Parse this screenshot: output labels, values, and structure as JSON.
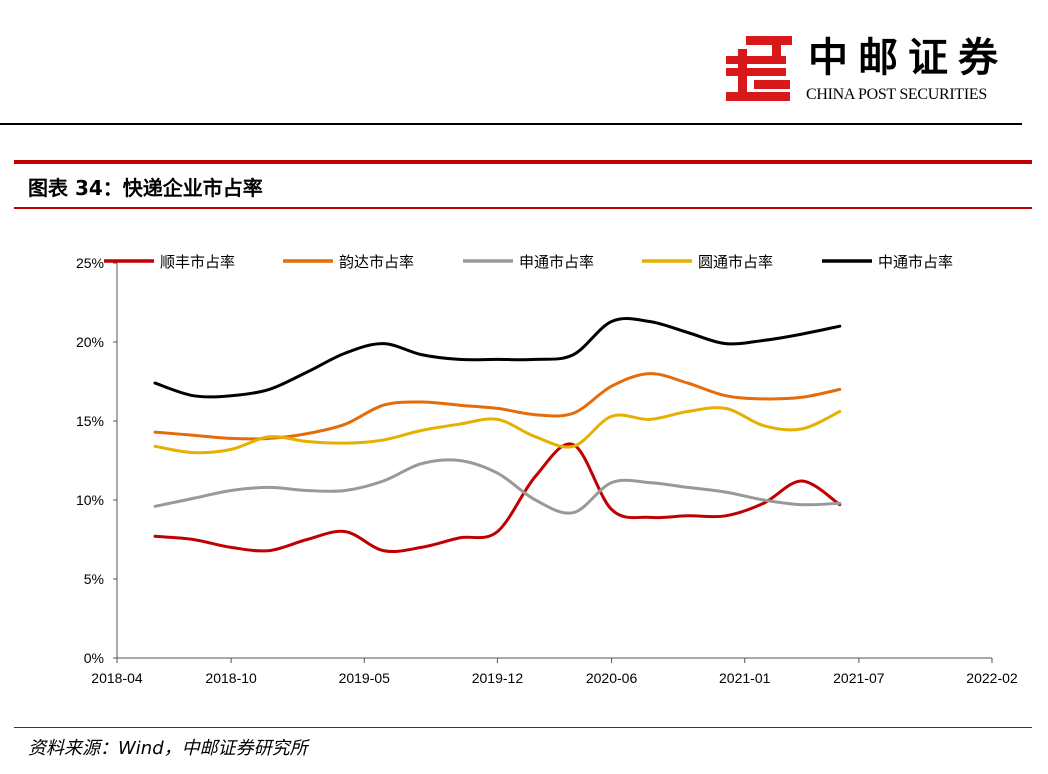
{
  "header": {
    "logo_cn": "中邮证券",
    "logo_en": "CHINA POST SECURITIES"
  },
  "figure": {
    "title": "图表 34：快递企业市占率"
  },
  "footer": {
    "source": "资料来源：Wind，中邮证券研究所"
  },
  "colors": {
    "brand_red": "#c00000"
  },
  "chart_data": {
    "type": "line",
    "title": "图表 34：快递企业市占率",
    "xlabel": "",
    "ylabel": "",
    "x_tick_labels": [
      "2018-04",
      "2018-10",
      "2019-05",
      "2019-12",
      "2020-06",
      "2021-01",
      "2021-07",
      "2022-02"
    ],
    "y_tick_labels": [
      "0%",
      "5%",
      "10%",
      "15%",
      "20%",
      "25%"
    ],
    "ylim": [
      0,
      25
    ],
    "x_range_months": [
      0,
      46
    ],
    "x_tick_months": [
      0,
      6,
      13,
      20,
      26,
      33,
      39,
      46
    ],
    "x_start": "2018-04",
    "x": [
      "2018-06",
      "2018-08",
      "2018-10",
      "2018-12",
      "2019-02",
      "2019-04",
      "2019-06",
      "2019-08",
      "2019-10",
      "2019-12",
      "2020-02",
      "2020-04",
      "2020-06",
      "2020-08",
      "2020-10",
      "2020-12",
      "2021-02",
      "2021-04",
      "2021-06"
    ],
    "x_months": [
      2,
      4,
      6,
      8,
      10,
      12,
      14,
      16,
      18,
      20,
      22,
      24,
      26,
      28,
      30,
      32,
      34,
      36,
      38
    ],
    "grid": false,
    "legend_position": "top",
    "series": [
      {
        "name": "顺丰市占率",
        "color": "#c00000",
        "values": [
          7.7,
          7.5,
          7.0,
          6.8,
          7.5,
          8.0,
          6.8,
          7.0,
          7.6,
          8.0,
          11.5,
          13.5,
          9.4,
          8.9,
          9.0,
          9.0,
          9.8,
          11.2,
          9.7
        ]
      },
      {
        "name": "韵达市占率",
        "color": "#e46c0a",
        "values": [
          14.3,
          14.1,
          13.9,
          13.9,
          14.2,
          14.8,
          16.0,
          16.2,
          16.0,
          15.8,
          15.4,
          15.5,
          17.2,
          18.0,
          17.4,
          16.6,
          16.4,
          16.5,
          17.0
        ]
      },
      {
        "name": "申通市占率",
        "color": "#999999",
        "values": [
          9.6,
          10.1,
          10.6,
          10.8,
          10.6,
          10.6,
          11.2,
          12.3,
          12.5,
          11.7,
          10.0,
          9.2,
          11.1,
          11.1,
          10.8,
          10.5,
          10.0,
          9.7,
          9.8
        ]
      },
      {
        "name": "圆通市占率",
        "color": "#e6b000",
        "values": [
          13.4,
          13.0,
          13.2,
          14.0,
          13.7,
          13.6,
          13.8,
          14.4,
          14.8,
          15.1,
          14.0,
          13.4,
          15.3,
          15.1,
          15.6,
          15.8,
          14.7,
          14.5,
          15.6
        ]
      },
      {
        "name": "中通市占率",
        "color": "#000000",
        "values": [
          17.4,
          16.6,
          16.6,
          17.0,
          18.1,
          19.3,
          19.9,
          19.2,
          18.9,
          18.9,
          18.9,
          19.2,
          21.3,
          21.3,
          20.6,
          19.9,
          20.1,
          20.5,
          21.0
        ]
      }
    ]
  }
}
